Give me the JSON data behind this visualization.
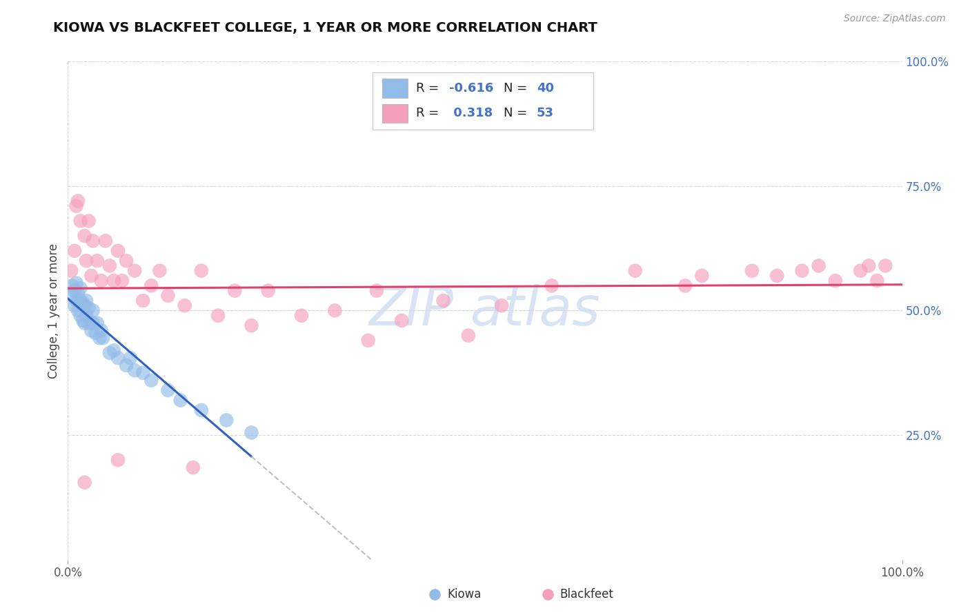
{
  "title": "KIOWA VS BLACKFEET COLLEGE, 1 YEAR OR MORE CORRELATION CHART",
  "source_text": "Source: ZipAtlas.com",
  "ylabel": "College, 1 year or more",
  "kiowa_color": "#92bce8",
  "blackfeet_color": "#f4a0bc",
  "kiowa_line_color": "#3060c0",
  "blackfeet_line_color": "#e0406a",
  "dashed_line_color": "#c0c0c0",
  "background_color": "#ffffff",
  "grid_color": "#d8d8d8",
  "watermark_color": "#c8d8ee",
  "kiowa_R": -0.616,
  "kiowa_N": 40,
  "blackfeet_R": 0.318,
  "blackfeet_N": 53,
  "kiowa_x": [
    0.005,
    0.005,
    0.008,
    0.008,
    0.01,
    0.01,
    0.012,
    0.012,
    0.015,
    0.015,
    0.015,
    0.018,
    0.018,
    0.02,
    0.02,
    0.022,
    0.022,
    0.025,
    0.025,
    0.028,
    0.03,
    0.03,
    0.033,
    0.035,
    0.038,
    0.04,
    0.042,
    0.05,
    0.055,
    0.06,
    0.07,
    0.075,
    0.08,
    0.09,
    0.1,
    0.12,
    0.135,
    0.16,
    0.19,
    0.22
  ],
  "kiowa_y": [
    0.53,
    0.55,
    0.51,
    0.54,
    0.52,
    0.555,
    0.5,
    0.535,
    0.49,
    0.52,
    0.545,
    0.48,
    0.515,
    0.475,
    0.51,
    0.49,
    0.52,
    0.475,
    0.505,
    0.46,
    0.475,
    0.5,
    0.455,
    0.475,
    0.445,
    0.46,
    0.445,
    0.415,
    0.42,
    0.405,
    0.39,
    0.405,
    0.38,
    0.375,
    0.36,
    0.34,
    0.32,
    0.3,
    0.28,
    0.255
  ],
  "blackfeet_x": [
    0.004,
    0.008,
    0.01,
    0.012,
    0.015,
    0.02,
    0.022,
    0.025,
    0.028,
    0.03,
    0.035,
    0.04,
    0.045,
    0.05,
    0.055,
    0.06,
    0.065,
    0.07,
    0.08,
    0.09,
    0.1,
    0.11,
    0.12,
    0.14,
    0.16,
    0.18,
    0.2,
    0.22,
    0.24,
    0.28,
    0.32,
    0.36,
    0.37,
    0.4,
    0.45,
    0.48,
    0.52,
    0.58,
    0.68,
    0.74,
    0.76,
    0.82,
    0.85,
    0.88,
    0.9,
    0.92,
    0.95,
    0.96,
    0.97,
    0.98,
    0.02,
    0.06,
    0.15
  ],
  "blackfeet_y": [
    0.58,
    0.62,
    0.71,
    0.72,
    0.68,
    0.65,
    0.6,
    0.68,
    0.57,
    0.64,
    0.6,
    0.56,
    0.64,
    0.59,
    0.56,
    0.62,
    0.56,
    0.6,
    0.58,
    0.52,
    0.55,
    0.58,
    0.53,
    0.51,
    0.58,
    0.49,
    0.54,
    0.47,
    0.54,
    0.49,
    0.5,
    0.44,
    0.54,
    0.48,
    0.52,
    0.45,
    0.51,
    0.55,
    0.58,
    0.55,
    0.57,
    0.58,
    0.57,
    0.58,
    0.59,
    0.56,
    0.58,
    0.59,
    0.56,
    0.59,
    0.155,
    0.2,
    0.185
  ],
  "xlim": [
    0.0,
    1.0
  ],
  "ylim": [
    0.0,
    1.0
  ],
  "yticks": [
    0.25,
    0.5,
    0.75,
    1.0
  ],
  "ytick_labels": [
    "25.0%",
    "50.0%",
    "75.0%",
    "100.0%"
  ],
  "xtick_labels": [
    "0.0%",
    "100.0%"
  ]
}
